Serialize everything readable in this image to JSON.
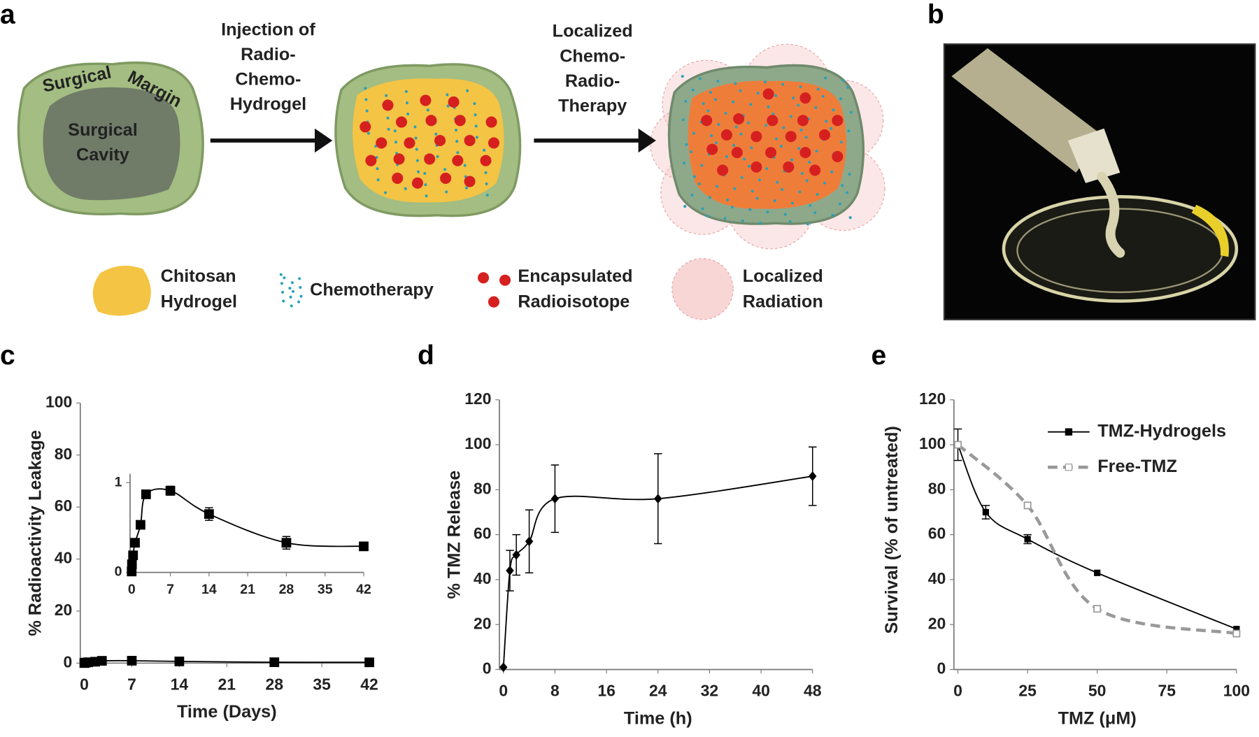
{
  "panels": [
    "a",
    "b",
    "c",
    "d",
    "e"
  ],
  "diagram": {
    "margin_label": [
      "Surgical",
      "Margin"
    ],
    "cavity_label": [
      "Surgical",
      "Cavity"
    ],
    "steps": [
      [
        "Injection of",
        "Radio-",
        "Chemo-",
        "Hydrogel"
      ],
      [
        "Localized",
        "Chemo-",
        "Radio-",
        "Therapy"
      ]
    ],
    "legend": [
      [
        "Chitosan",
        "Hydrogel"
      ],
      [
        "Chemotherapy"
      ],
      [
        "Encapsulated",
        "Radioisotope"
      ],
      [
        "Localized",
        "Radiation"
      ]
    ]
  },
  "chart_data": [
    {
      "type": "line",
      "xlabel": "Time (Days)",
      "ylabel": "% Radioactivity Leakage",
      "x": [
        0,
        0.05,
        0.25,
        0.6,
        1.6,
        2.6,
        7,
        14,
        28,
        42
      ],
      "values": [
        0.01,
        0.09,
        0.19,
        0.33,
        0.53,
        0.87,
        0.91,
        0.65,
        0.33,
        0.29
      ],
      "errors": [
        null,
        null,
        null,
        null,
        null,
        null,
        0.05,
        0.07,
        0.07,
        null
      ],
      "color": "#000000",
      "marker": "square",
      "xlim": [
        0,
        42
      ],
      "xticks": [
        0,
        7,
        14,
        21,
        28,
        35,
        42
      ],
      "ylim": [
        0,
        100
      ],
      "yticks": [
        0,
        20,
        40,
        60,
        80,
        100
      ],
      "inset": {
        "xlim": [
          0,
          42
        ],
        "xticks": [
          0,
          7,
          14,
          21,
          28,
          35,
          42
        ],
        "ylim": [
          0,
          1.1
        ],
        "yticks": [
          0,
          1
        ]
      }
    },
    {
      "type": "line",
      "xlabel": "Time (h)",
      "ylabel": "% TMZ Release",
      "x": [
        0,
        1,
        2,
        4,
        8,
        24,
        48
      ],
      "values": [
        1,
        44,
        51,
        57,
        76,
        76,
        86
      ],
      "errors": [
        null,
        9,
        9,
        14,
        15,
        20,
        13
      ],
      "color": "#000000",
      "marker": "diamond",
      "xlim": [
        0,
        48
      ],
      "xticks": [
        0,
        8,
        16,
        24,
        32,
        40,
        48
      ],
      "ylim": [
        0,
        120
      ],
      "yticks": [
        0,
        20,
        40,
        60,
        80,
        100,
        120
      ]
    },
    {
      "type": "line",
      "xlabel": "TMZ (μM)",
      "ylabel": "Survival (% of untreated)",
      "xlim": [
        0,
        100
      ],
      "xticks": [
        0,
        25,
        50,
        75,
        100
      ],
      "ylim": [
        0,
        120
      ],
      "yticks": [
        0,
        20,
        40,
        60,
        80,
        100,
        120
      ],
      "legend": "upper right",
      "series": [
        {
          "name": "TMZ-Hydrogels",
          "color": "#000000",
          "marker": "square",
          "dashed": false,
          "x": [
            0,
            10,
            25,
            50,
            100
          ],
          "values": [
            100,
            70,
            58,
            43,
            18
          ],
          "errors": [
            7,
            3,
            2,
            null,
            null
          ]
        },
        {
          "name": "Free-TMZ",
          "color": "#999999",
          "marker": "open-square",
          "dashed": true,
          "x": [
            0,
            25,
            50,
            100
          ],
          "values": [
            100,
            73,
            27,
            16
          ],
          "errors": [
            null,
            null,
            null,
            null
          ]
        }
      ]
    }
  ]
}
